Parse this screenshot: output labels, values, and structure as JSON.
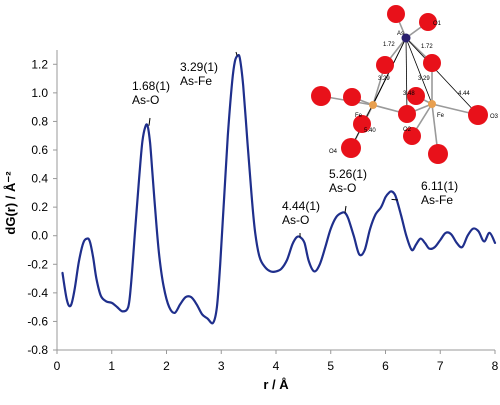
{
  "chart_data": {
    "type": "line",
    "xlabel": "r / Å",
    "ylabel": "dG(r) / Å⁻²",
    "xlim": [
      0,
      8
    ],
    "ylim": [
      -0.8,
      1.3
    ],
    "x_ticks": [
      "0",
      "1",
      "2",
      "3",
      "4",
      "5",
      "6",
      "7",
      "8"
    ],
    "y_ticks": [
      "-0.8",
      "-0.6",
      "-0.4",
      "-0.2",
      "0.0",
      "0.2",
      "0.4",
      "0.6",
      "0.8",
      "1.0",
      "1.2"
    ],
    "grid": false,
    "line_color": "#1f2f8c",
    "series": [
      {
        "x": [
          0.1,
          0.18,
          0.25,
          0.32,
          0.4,
          0.48,
          0.55,
          0.6,
          0.66,
          0.72,
          0.8,
          0.9,
          1.0,
          1.1,
          1.2,
          1.3,
          1.35,
          1.42,
          1.5,
          1.56,
          1.62,
          1.66,
          1.7,
          1.74,
          1.8,
          1.87,
          1.95,
          2.05,
          2.15,
          2.25,
          2.35,
          2.45,
          2.55,
          2.65,
          2.75,
          2.85,
          2.92,
          2.98,
          3.05,
          3.12,
          3.2,
          3.25,
          3.3,
          3.34,
          3.4,
          3.48,
          3.55,
          3.62,
          3.7,
          3.8,
          3.9,
          4.0,
          4.1,
          4.2,
          4.3,
          4.38,
          4.44,
          4.52,
          4.6,
          4.7,
          4.8,
          4.9,
          5.0,
          5.1,
          5.2,
          5.26,
          5.32,
          5.42,
          5.52,
          5.62,
          5.72,
          5.82,
          5.92,
          6.0,
          6.06,
          6.11,
          6.18,
          6.28,
          6.38,
          6.48,
          6.56,
          6.64,
          6.72,
          6.8,
          6.9,
          7.0,
          7.1,
          7.2,
          7.3,
          7.4,
          7.5,
          7.6,
          7.7,
          7.8,
          7.9,
          8.0
        ],
        "y": [
          -0.26,
          -0.45,
          -0.49,
          -0.38,
          -0.18,
          -0.05,
          -0.02,
          -0.04,
          -0.15,
          -0.3,
          -0.42,
          -0.46,
          -0.47,
          -0.5,
          -0.53,
          -0.5,
          -0.35,
          0.0,
          0.4,
          0.66,
          0.77,
          0.76,
          0.65,
          0.45,
          0.15,
          -0.15,
          -0.36,
          -0.5,
          -0.54,
          -0.48,
          -0.43,
          -0.43,
          -0.48,
          -0.55,
          -0.58,
          -0.61,
          -0.5,
          -0.2,
          0.25,
          0.7,
          1.08,
          1.22,
          1.26,
          1.24,
          1.05,
          0.65,
          0.3,
          0.02,
          -0.15,
          -0.22,
          -0.25,
          -0.25,
          -0.23,
          -0.17,
          -0.06,
          -0.01,
          -0.01,
          -0.05,
          -0.18,
          -0.25,
          -0.2,
          -0.08,
          0.05,
          0.13,
          0.16,
          0.16,
          0.12,
          0.0,
          -0.13,
          -0.1,
          0.05,
          0.15,
          0.2,
          0.27,
          0.3,
          0.31,
          0.28,
          0.15,
          0.0,
          -0.1,
          -0.06,
          -0.02,
          -0.05,
          -0.09,
          -0.08,
          -0.03,
          0.02,
          0.01,
          -0.05,
          -0.08,
          0.0,
          0.05,
          0.03,
          -0.04,
          0.02,
          -0.05
        ]
      }
    ],
    "annotations": [
      {
        "id": "ann1",
        "line1": "1.68(1)",
        "line2": "As-O",
        "x": 1.68,
        "y": 0.77
      },
      {
        "id": "ann2",
        "line1": "3.29(1)",
        "line2": "As-Fe",
        "x": 3.29,
        "y": 1.26
      },
      {
        "id": "ann3",
        "line1": "4.44(1)",
        "line2": "As-O",
        "x": 4.44,
        "y": -0.01
      },
      {
        "id": "ann4",
        "line1": "5.26(1)",
        "line2": "As-O",
        "x": 5.26,
        "y": 0.16
      },
      {
        "id": "ann5",
        "line1": "6.11(1)",
        "line2": "As-Fe",
        "x": 6.11,
        "y": 0.31
      }
    ]
  },
  "inset": {
    "labels": {
      "as": "As",
      "o1": "O1",
      "o2": "O2",
      "o3": "O3",
      "o4": "O4",
      "fe1": "Fe",
      "fe2": "Fe",
      "d1": "1.72",
      "d2": "1.72",
      "d3": "3.29",
      "d4": "3.29",
      "d5": "3.48",
      "d6": "4.44",
      "d7": "5.40"
    },
    "colors": {
      "oxygen": "#e8111a",
      "iron": "#e8a050",
      "arsenic": "#2a1f6e",
      "bond": "#9a9a9a"
    }
  }
}
